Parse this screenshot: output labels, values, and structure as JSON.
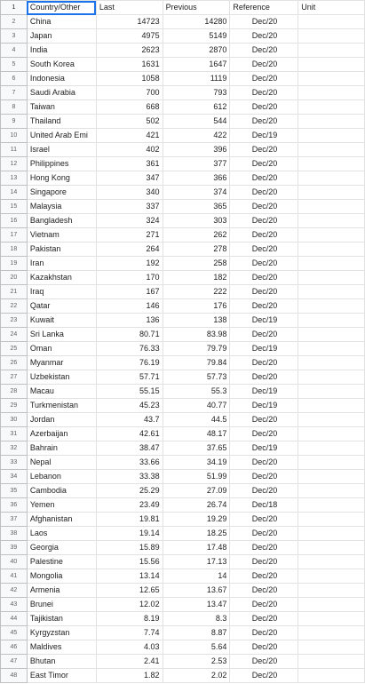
{
  "headers": {
    "row_number": "1",
    "country": "Country/Other",
    "last": "Last",
    "previous": "Previous",
    "reference": "Reference",
    "unit": "Unit"
  },
  "rows": [
    {
      "n": "2",
      "country": "China",
      "last": "14723",
      "previous": "14280",
      "ref": "Dec/20"
    },
    {
      "n": "3",
      "country": "Japan",
      "last": "4975",
      "previous": "5149",
      "ref": "Dec/20"
    },
    {
      "n": "4",
      "country": "India",
      "last": "2623",
      "previous": "2870",
      "ref": "Dec/20"
    },
    {
      "n": "5",
      "country": "South Korea",
      "last": "1631",
      "previous": "1647",
      "ref": "Dec/20"
    },
    {
      "n": "6",
      "country": "Indonesia",
      "last": "1058",
      "previous": "1119",
      "ref": "Dec/20"
    },
    {
      "n": "7",
      "country": "Saudi Arabia",
      "last": "700",
      "previous": "793",
      "ref": "Dec/20"
    },
    {
      "n": "8",
      "country": "Taiwan",
      "last": "668",
      "previous": "612",
      "ref": "Dec/20"
    },
    {
      "n": "9",
      "country": "Thailand",
      "last": "502",
      "previous": "544",
      "ref": "Dec/20"
    },
    {
      "n": "10",
      "country": "United Arab Emi",
      "last": "421",
      "previous": "422",
      "ref": "Dec/19"
    },
    {
      "n": "11",
      "country": "Israel",
      "last": "402",
      "previous": "396",
      "ref": "Dec/20"
    },
    {
      "n": "12",
      "country": "Philippines",
      "last": "361",
      "previous": "377",
      "ref": "Dec/20"
    },
    {
      "n": "13",
      "country": "Hong Kong",
      "last": "347",
      "previous": "366",
      "ref": "Dec/20"
    },
    {
      "n": "14",
      "country": "Singapore",
      "last": "340",
      "previous": "374",
      "ref": "Dec/20"
    },
    {
      "n": "15",
      "country": "Malaysia",
      "last": "337",
      "previous": "365",
      "ref": "Dec/20"
    },
    {
      "n": "16",
      "country": "Bangladesh",
      "last": "324",
      "previous": "303",
      "ref": "Dec/20"
    },
    {
      "n": "17",
      "country": "Vietnam",
      "last": "271",
      "previous": "262",
      "ref": "Dec/20"
    },
    {
      "n": "18",
      "country": "Pakistan",
      "last": "264",
      "previous": "278",
      "ref": "Dec/20"
    },
    {
      "n": "19",
      "country": "Iran",
      "last": "192",
      "previous": "258",
      "ref": "Dec/20"
    },
    {
      "n": "20",
      "country": "Kazakhstan",
      "last": "170",
      "previous": "182",
      "ref": "Dec/20"
    },
    {
      "n": "21",
      "country": "Iraq",
      "last": "167",
      "previous": "222",
      "ref": "Dec/20"
    },
    {
      "n": "22",
      "country": "Qatar",
      "last": "146",
      "previous": "176",
      "ref": "Dec/20"
    },
    {
      "n": "23",
      "country": "Kuwait",
      "last": "136",
      "previous": "138",
      "ref": "Dec/19"
    },
    {
      "n": "24",
      "country": "Sri Lanka",
      "last": "80.71",
      "previous": "83.98",
      "ref": "Dec/20"
    },
    {
      "n": "25",
      "country": "Oman",
      "last": "76.33",
      "previous": "79.79",
      "ref": "Dec/19"
    },
    {
      "n": "26",
      "country": "Myanmar",
      "last": "76.19",
      "previous": "79.84",
      "ref": "Dec/20"
    },
    {
      "n": "27",
      "country": "Uzbekistan",
      "last": "57.71",
      "previous": "57.73",
      "ref": "Dec/20"
    },
    {
      "n": "28",
      "country": "Macau",
      "last": "55.15",
      "previous": "55.3",
      "ref": "Dec/19"
    },
    {
      "n": "29",
      "country": "Turkmenistan",
      "last": "45.23",
      "previous": "40.77",
      "ref": "Dec/19"
    },
    {
      "n": "30",
      "country": "Jordan",
      "last": "43.7",
      "previous": "44.5",
      "ref": "Dec/20"
    },
    {
      "n": "31",
      "country": "Azerbaijan",
      "last": "42.61",
      "previous": "48.17",
      "ref": "Dec/20"
    },
    {
      "n": "32",
      "country": "Bahrain",
      "last": "38.47",
      "previous": "37.65",
      "ref": "Dec/19"
    },
    {
      "n": "33",
      "country": "Nepal",
      "last": "33.66",
      "previous": "34.19",
      "ref": "Dec/20"
    },
    {
      "n": "34",
      "country": "Lebanon",
      "last": "33.38",
      "previous": "51.99",
      "ref": "Dec/20"
    },
    {
      "n": "35",
      "country": "Cambodia",
      "last": "25.29",
      "previous": "27.09",
      "ref": "Dec/20"
    },
    {
      "n": "36",
      "country": "Yemen",
      "last": "23.49",
      "previous": "26.74",
      "ref": "Dec/18"
    },
    {
      "n": "37",
      "country": "Afghanistan",
      "last": "19.81",
      "previous": "19.29",
      "ref": "Dec/20"
    },
    {
      "n": "38",
      "country": "Laos",
      "last": "19.14",
      "previous": "18.25",
      "ref": "Dec/20"
    },
    {
      "n": "39",
      "country": "Georgia",
      "last": "15.89",
      "previous": "17.48",
      "ref": "Dec/20"
    },
    {
      "n": "40",
      "country": "Palestine",
      "last": "15.56",
      "previous": "17.13",
      "ref": "Dec/20"
    },
    {
      "n": "41",
      "country": "Mongolia",
      "last": "13.14",
      "previous": "14",
      "ref": "Dec/20"
    },
    {
      "n": "42",
      "country": "Armenia",
      "last": "12.65",
      "previous": "13.67",
      "ref": "Dec/20"
    },
    {
      "n": "43",
      "country": "Brunei",
      "last": "12.02",
      "previous": "13.47",
      "ref": "Dec/20"
    },
    {
      "n": "44",
      "country": "Tajikistan",
      "last": "8.19",
      "previous": "8.3",
      "ref": "Dec/20"
    },
    {
      "n": "45",
      "country": "Kyrgyzstan",
      "last": "7.74",
      "previous": "8.87",
      "ref": "Dec/20"
    },
    {
      "n": "46",
      "country": "Maldives",
      "last": "4.03",
      "previous": "5.64",
      "ref": "Dec/20"
    },
    {
      "n": "47",
      "country": "Bhutan",
      "last": "2.41",
      "previous": "2.53",
      "ref": "Dec/20"
    },
    {
      "n": "48",
      "country": "East Timor",
      "last": "1.82",
      "previous": "2.02",
      "ref": "Dec/20"
    }
  ]
}
